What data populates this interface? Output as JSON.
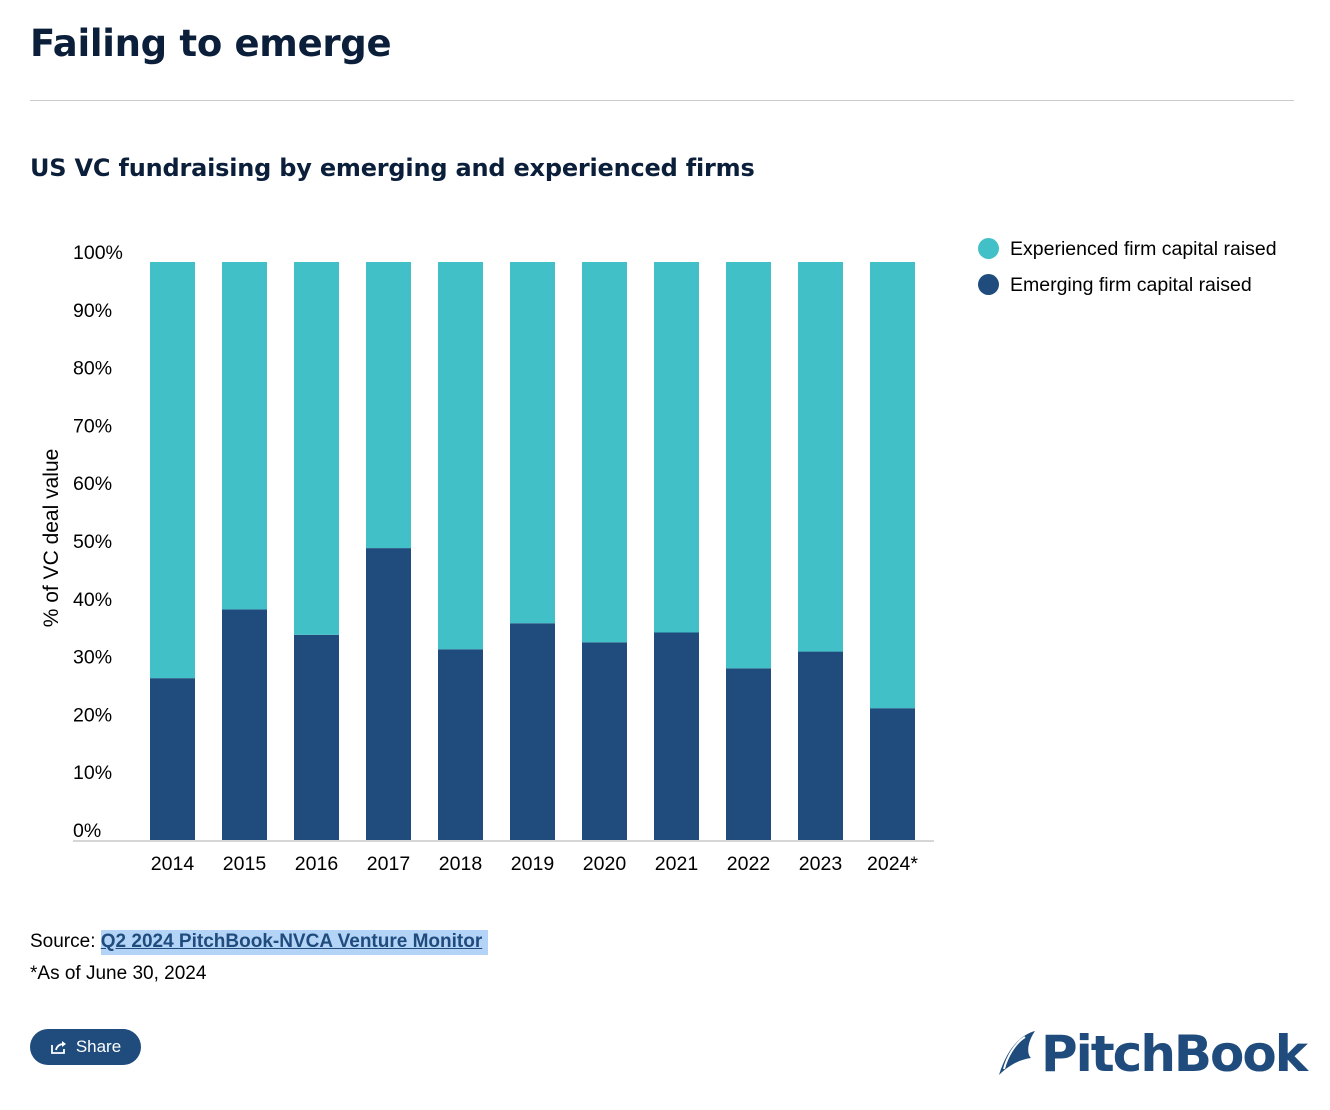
{
  "header": {
    "title": "Failing to emerge",
    "subtitle": "US VC fundraising by emerging and experienced firms"
  },
  "colors": {
    "experienced": "#41c1c7",
    "emerging": "#1f4b7d",
    "heading": "#0b1f3a"
  },
  "legend": {
    "items": [
      {
        "label": "Experienced firm capital raised",
        "color": "#41c1c7"
      },
      {
        "label": "Emerging firm capital raised",
        "color": "#1f4b7d"
      }
    ]
  },
  "chart_data": {
    "type": "bar",
    "stacked": true,
    "categories": [
      "2014",
      "2015",
      "2016",
      "2017",
      "2018",
      "2019",
      "2020",
      "2021",
      "2022",
      "2023",
      "2024*"
    ],
    "series": [
      {
        "name": "Emerging firm capital raised",
        "values": [
          28.0,
          39.9,
          35.5,
          50.5,
          33.0,
          37.5,
          34.2,
          35.9,
          29.7,
          32.6,
          22.8
        ]
      },
      {
        "name": "Experienced firm capital raised",
        "values": [
          72.0,
          60.1,
          64.5,
          49.5,
          67.0,
          62.5,
          65.8,
          64.1,
          70.3,
          67.4,
          77.2
        ]
      }
    ],
    "ylabel": "% of VC deal value",
    "xlabel": "",
    "ylim": [
      0,
      100
    ],
    "yticks": [
      "0%",
      "10%",
      "20%",
      "30%",
      "40%",
      "50%",
      "60%",
      "70%",
      "80%",
      "90%",
      "100%"
    ],
    "grid": false,
    "legend_position": "right"
  },
  "footer": {
    "source_prefix": "Source: ",
    "source_link": "Q2 2024 PitchBook-NVCA Venture Monitor",
    "footnote": "*As of June 30, 2024",
    "share_label": "Share",
    "brand": "PitchBook"
  }
}
